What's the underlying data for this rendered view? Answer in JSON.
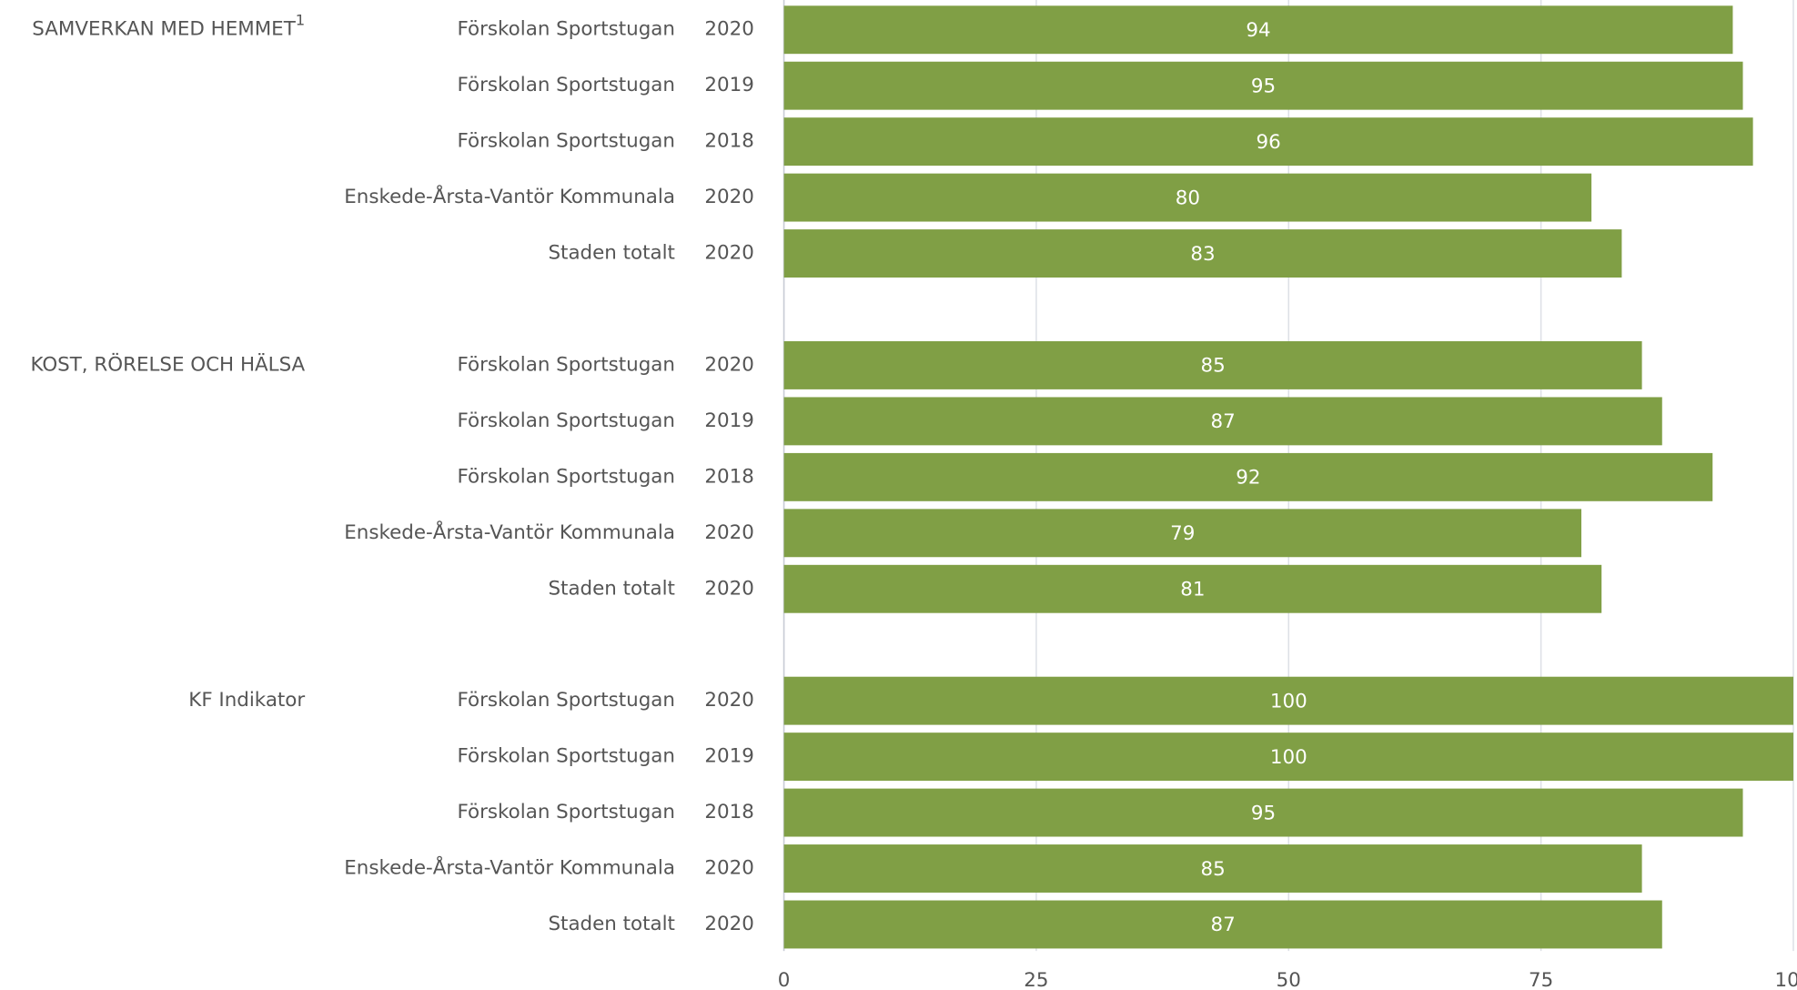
{
  "chart_data": {
    "type": "bar",
    "orientation": "horizontal",
    "color": "#809f45",
    "xlim": [
      0,
      100
    ],
    "xticks": [
      0,
      25,
      50,
      75,
      100
    ],
    "grid": true,
    "groups": [
      {
        "name": "SAMVERKAN MED HEMMET",
        "note_marker": "1",
        "categories": [
          "Förskolan Sportstugan",
          "Förskolan Sportstugan",
          "Förskolan Sportstugan",
          "Enskede-Årsta-Vantör Kommunala",
          "Staden totalt"
        ],
        "years": [
          "2020",
          "2019",
          "2018",
          "2020",
          "2020"
        ],
        "values": [
          94,
          95,
          96,
          80,
          83
        ]
      },
      {
        "name": "KOST, RÖRELSE OCH HÄLSA",
        "categories": [
          "Förskolan Sportstugan",
          "Förskolan Sportstugan",
          "Förskolan Sportstugan",
          "Enskede-Årsta-Vantör Kommunala",
          "Staden totalt"
        ],
        "years": [
          "2020",
          "2019",
          "2018",
          "2020",
          "2020"
        ],
        "values": [
          85,
          87,
          92,
          79,
          81
        ]
      },
      {
        "name": "KF Indikator",
        "categories": [
          "Förskolan Sportstugan",
          "Förskolan Sportstugan",
          "Förskolan Sportstugan",
          "Enskede-Årsta-Vantör Kommunala",
          "Staden totalt"
        ],
        "years": [
          "2020",
          "2019",
          "2018",
          "2020",
          "2020"
        ],
        "values": [
          100,
          100,
          95,
          85,
          87
        ]
      }
    ]
  }
}
